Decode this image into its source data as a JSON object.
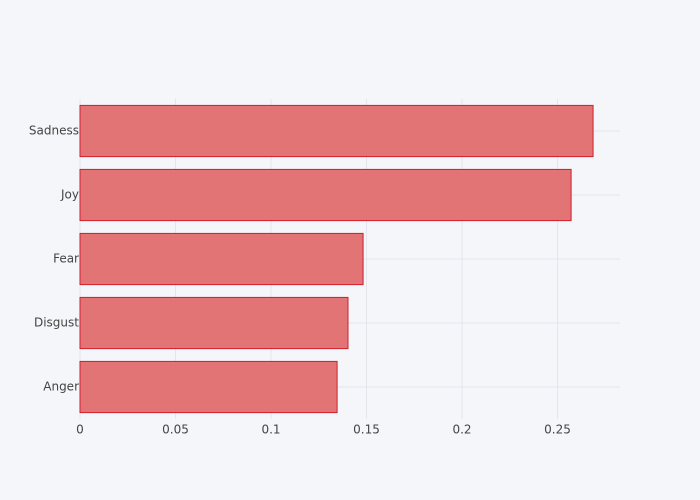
{
  "chart_data": {
    "type": "hbar",
    "categories": [
      "Anger",
      "Disgust",
      "Fear",
      "Joy",
      "Sadness"
    ],
    "values": [
      0.1346,
      0.1403,
      0.1482,
      0.2571,
      0.2686
    ],
    "color": "#e06666",
    "line_color": "#d0202e",
    "xlim": [
      0,
      0.2827
    ],
    "xticks": [
      0,
      0.05,
      0.1,
      0.15,
      0.2,
      0.25
    ],
    "grid": true
  }
}
